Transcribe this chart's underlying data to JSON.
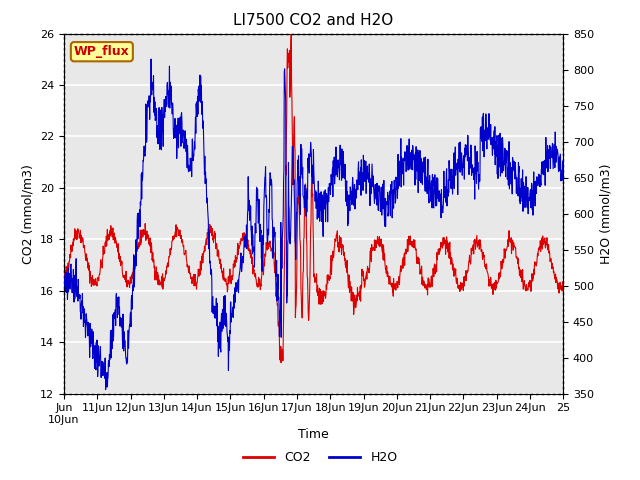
{
  "title": "LI7500 CO2 and H2O",
  "xlabel": "Time",
  "ylabel_left": "CO2 (mmol/m3)",
  "ylabel_right": "H2O (mmol/m3)",
  "ylim_left": [
    12,
    26
  ],
  "ylim_right": [
    350,
    850
  ],
  "yticks_left": [
    12,
    14,
    16,
    18,
    20,
    22,
    24,
    26
  ],
  "yticks_right": [
    350,
    400,
    450,
    500,
    550,
    600,
    650,
    700,
    750,
    800,
    850
  ],
  "background_color": "#e8e8e8",
  "grid_color": "#ffffff",
  "wp_flux_label": "WP_flux",
  "wp_flux_bg": "#ffff99",
  "wp_flux_border": "#aa6600",
  "wp_flux_text_color": "#cc0000",
  "line_co2_color": "#dd0000",
  "line_h2o_color": "#0000cc",
  "legend_co2": "CO2",
  "legend_h2o": "H2O",
  "title_fontsize": 11,
  "axis_fontsize": 9,
  "tick_fontsize": 8
}
